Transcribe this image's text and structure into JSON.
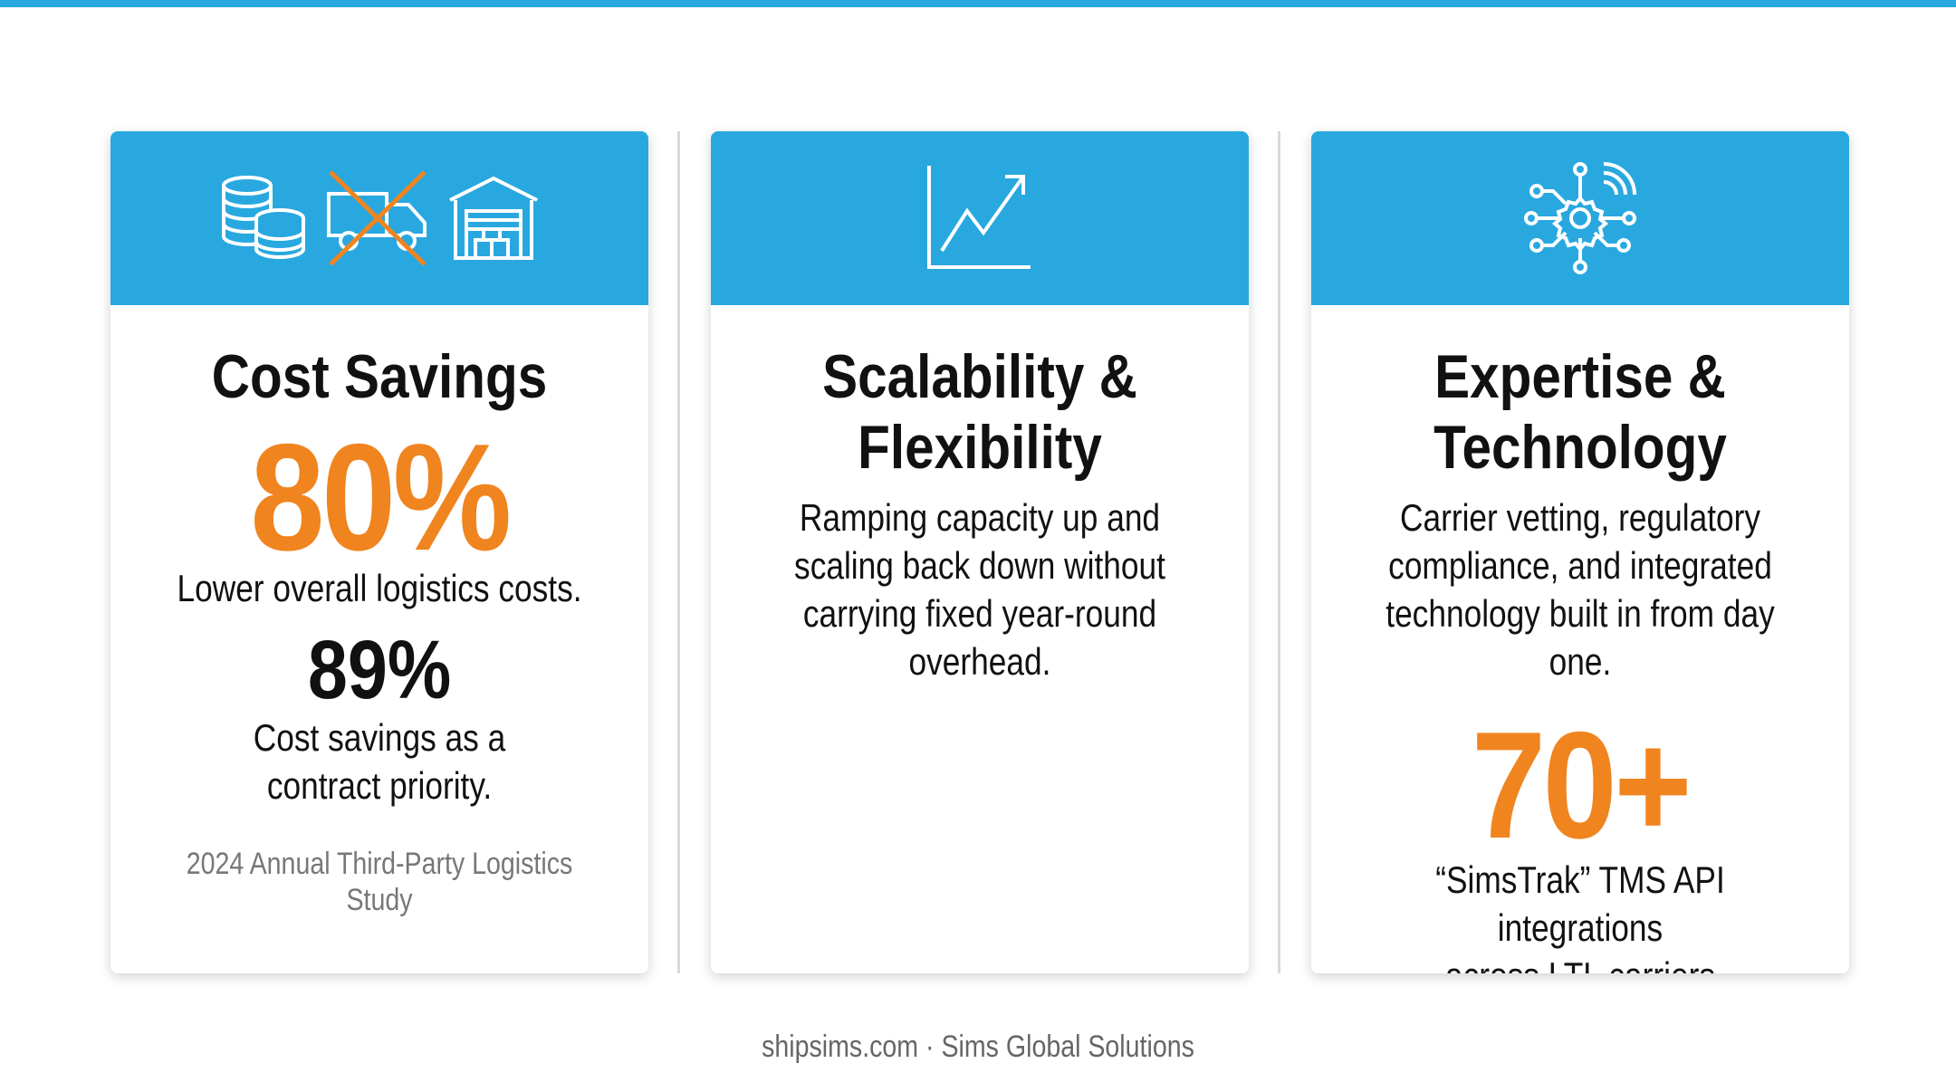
{
  "colors": {
    "accent_blue": "#29a8e0",
    "accent_orange": "#f0841f",
    "text_dark": "#111111",
    "text_muted": "#777777",
    "divider": "#d9d9d9"
  },
  "cards": [
    {
      "icons": [
        "coins-stack-icon",
        "truck-crossed-out-icon",
        "warehouse-icon"
      ],
      "title": "Cost Savings",
      "big_stat": "80%",
      "big_stat_caption": "Lower overall logistics costs.",
      "secondary_stat": "89%",
      "secondary_caption_line1": "Cost savings as a",
      "secondary_caption_line2": "contract priority.",
      "source": "2024 Annual Third-Party Logistics Study"
    },
    {
      "icons": [
        "growth-chart-icon"
      ],
      "title_line1": "Scalability &",
      "title_line2": "Flexibility",
      "body_lines": [
        "Ramping capacity up and",
        "scaling back down without",
        "carrying fixed year-round",
        "overhead."
      ]
    },
    {
      "icons": [
        "gear-network-icon"
      ],
      "title_line1": "Expertise &",
      "title_line2": "Technology",
      "body_lines": [
        "Carrier vetting, regulatory",
        "compliance, and integrated",
        "technology built in from day one."
      ],
      "big_stat": "70+",
      "big_stat_caption_line1": "“SimsTrak” TMS API integrations",
      "big_stat_caption_line2": "across LTL carriers"
    }
  ],
  "footer": "shipsims.com · Sims Global Solutions"
}
